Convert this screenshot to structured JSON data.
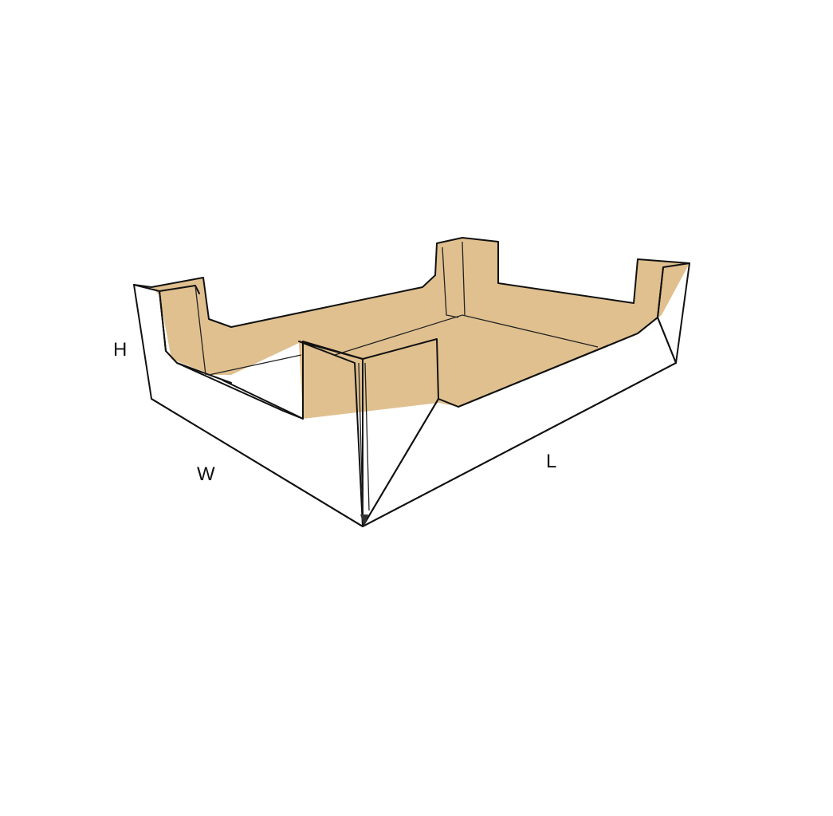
{
  "diagram": {
    "labels": {
      "height": "H",
      "width": "W",
      "length": "L"
    },
    "colors": {
      "inner_board": "#e0c08f",
      "outer_board": "#ffffff",
      "outline": "#111111",
      "background": "#ffffff"
    }
  }
}
